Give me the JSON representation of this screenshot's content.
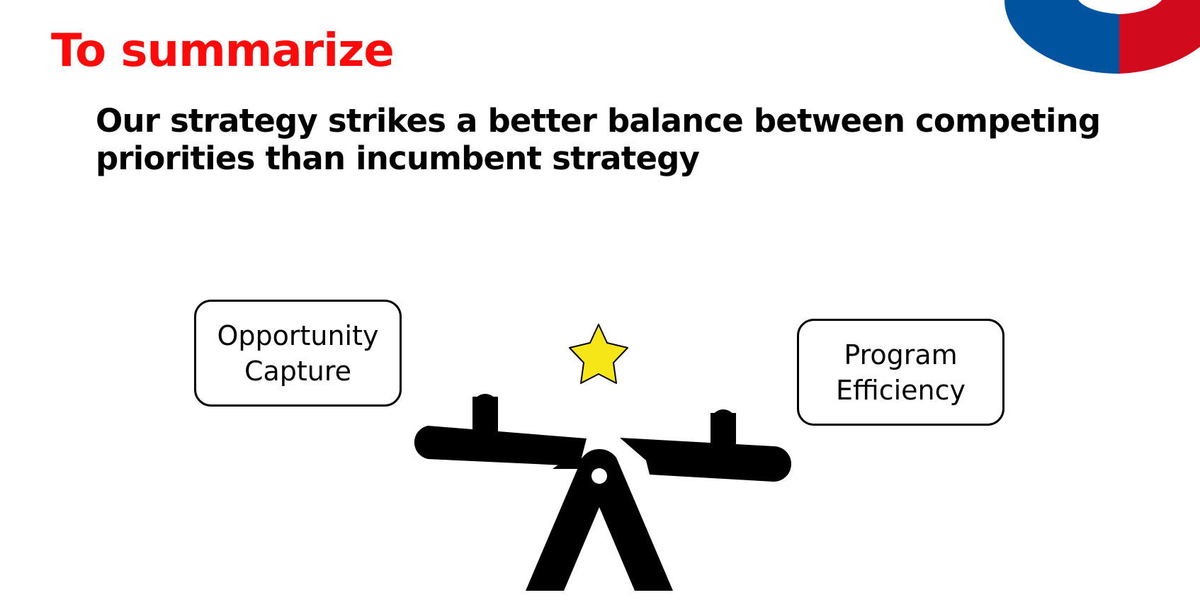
{
  "slide": {
    "title": "To summarize",
    "subtitle": "Our strategy strikes a better balance between competing priorities than incumbent strategy"
  },
  "balance": {
    "left_label": [
      "Opportunity",
      "Capture"
    ],
    "right_label": [
      "Program",
      "Efficiency"
    ]
  },
  "colors": {
    "title": "#ff0a0a",
    "text": "#000000",
    "star_fill": "#f7e617",
    "logo_blue": "#00539f",
    "logo_red": "#d20a1e"
  },
  "icons": {
    "center": "star-icon",
    "scale": "seesaw-icon",
    "corner": "logo-mark"
  }
}
